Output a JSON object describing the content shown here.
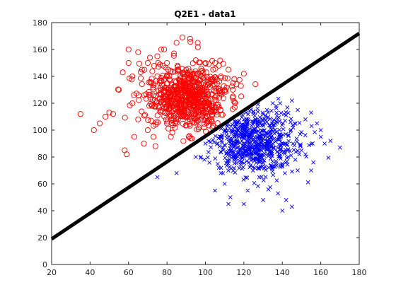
{
  "chart_data": {
    "type": "scatter",
    "title": "Q2E1 - data1",
    "xlabel": "",
    "ylabel": "",
    "xlim": [
      20,
      180
    ],
    "ylim": [
      0,
      180
    ],
    "xticks": [
      20,
      40,
      60,
      80,
      100,
      120,
      140,
      160,
      180
    ],
    "yticks": [
      0,
      20,
      40,
      60,
      80,
      100,
      120,
      140,
      160,
      180
    ],
    "grid": false,
    "legend": "none",
    "colors": {
      "class_circle": "#ff0000",
      "class_cross": "#0000ff",
      "boundary": "#000000",
      "axes": "#262626"
    },
    "series": [
      {
        "marker": "circle",
        "color": "#ff0000",
        "center": [
          90,
          125
        ],
        "spread": [
          11,
          12
        ],
        "count": 700,
        "x": [
          35,
          42,
          45,
          48,
          50,
          52,
          55,
          57,
          58,
          59,
          60,
          60,
          62,
          62,
          63,
          65,
          65,
          67,
          68,
          70,
          70,
          72,
          73,
          74,
          75,
          75,
          77,
          78,
          80,
          82,
          85,
          87,
          88,
          90,
          92,
          95,
          96,
          98,
          100,
          102,
          104,
          105,
          107,
          108,
          110,
          112,
          115,
          120,
          100,
          80
        ],
        "y": [
          112,
          100,
          105,
          110,
          113,
          112,
          130,
          143,
          85,
          82,
          160,
          150,
          140,
          120,
          95,
          158,
          108,
          145,
          90,
          150,
          100,
          135,
          95,
          88,
          140,
          155,
          160,
          148,
          105,
          95,
          165,
          128,
          169,
          145,
          168,
          152,
          165,
          140,
          150,
          135,
          145,
          150,
          148,
          140,
          130,
          145,
          138,
          142,
          110,
          150
        ]
      },
      {
        "marker": "cross",
        "color": "#0000ff",
        "center": [
          125,
          92
        ],
        "spread": [
          11,
          13
        ],
        "count": 700,
        "x": [
          75,
          85,
          95,
          100,
          105,
          108,
          110,
          112,
          115,
          118,
          120,
          122,
          125,
          128,
          130,
          132,
          135,
          138,
          140,
          142,
          145,
          148,
          150,
          152,
          155,
          158,
          160,
          162,
          165,
          170,
          145,
          143,
          140,
          152,
          148,
          113,
          107,
          130,
          160,
          155
        ],
        "y": [
          65,
          68,
          80,
          90,
          55,
          68,
          60,
          45,
          110,
          115,
          45,
          55,
          112,
          130,
          48,
          115,
          120,
          130,
          40,
          48,
          122,
          115,
          85,
          108,
          113,
          105,
          100,
          90,
          92,
          87,
          43,
          80,
          75,
          82,
          70,
          50,
          72,
          125,
          95,
          70
        ]
      },
      {
        "marker": "line",
        "color": "#000000",
        "x": [
          20,
          180
        ],
        "y": [
          19,
          172
        ]
      }
    ]
  }
}
